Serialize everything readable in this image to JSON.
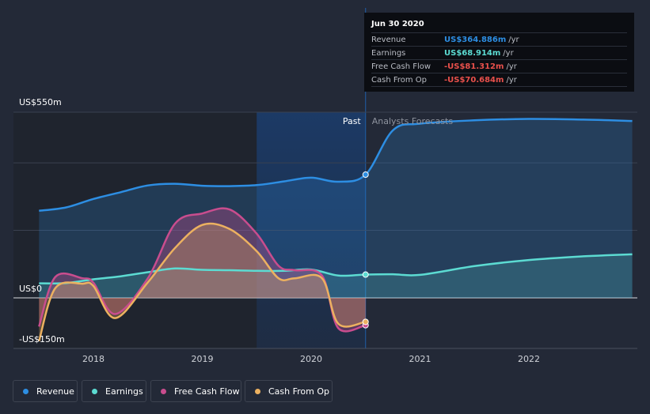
{
  "chart_data": {
    "type": "area",
    "y_axis": {
      "top_label": "US$550m",
      "zero_label": "US$0",
      "bottom_label": "-US$150m",
      "ylim": [
        -150,
        550
      ]
    },
    "x_axis": {
      "ticks": [
        "2018",
        "2019",
        "2020",
        "2021",
        "2022"
      ]
    },
    "regions": {
      "past_label": "Past",
      "forecast_label": "Analysts Forecasts"
    },
    "series": [
      {
        "name": "Revenue",
        "color": "#2d8ee3",
        "points": [
          [
            2017.5,
            258
          ],
          [
            2017.75,
            268
          ],
          [
            2018.0,
            293
          ],
          [
            2018.25,
            313
          ],
          [
            2018.5,
            333
          ],
          [
            2018.75,
            338
          ],
          [
            2019.0,
            332
          ],
          [
            2019.25,
            331
          ],
          [
            2019.5,
            334
          ],
          [
            2019.75,
            345
          ],
          [
            2020.0,
            356
          ],
          [
            2020.25,
            344
          ],
          [
            2020.5,
            365
          ],
          [
            2020.75,
            496
          ],
          [
            2021.0,
            516
          ],
          [
            2021.5,
            526
          ],
          [
            2022.0,
            530
          ],
          [
            2022.5,
            528
          ],
          [
            2022.95,
            524
          ]
        ]
      },
      {
        "name": "Earnings",
        "color": "#5cdbd2",
        "points": [
          [
            2017.5,
            43
          ],
          [
            2017.75,
            44
          ],
          [
            2018.0,
            55
          ],
          [
            2018.25,
            64
          ],
          [
            2018.5,
            76
          ],
          [
            2018.75,
            87
          ],
          [
            2019.0,
            83
          ],
          [
            2019.25,
            82
          ],
          [
            2019.5,
            80
          ],
          [
            2019.75,
            80
          ],
          [
            2020.0,
            84
          ],
          [
            2020.25,
            66
          ],
          [
            2020.5,
            69
          ],
          [
            2020.75,
            70
          ],
          [
            2021.0,
            68
          ],
          [
            2021.5,
            94
          ],
          [
            2022.0,
            112
          ],
          [
            2022.5,
            123
          ],
          [
            2022.95,
            129
          ]
        ]
      },
      {
        "name": "Free Cash Flow",
        "color": "#c94d8e",
        "points": [
          [
            2017.5,
            -85
          ],
          [
            2017.65,
            62
          ],
          [
            2017.9,
            58
          ],
          [
            2018.0,
            45
          ],
          [
            2018.2,
            -48
          ],
          [
            2018.5,
            58
          ],
          [
            2018.75,
            220
          ],
          [
            2019.0,
            250
          ],
          [
            2019.25,
            262
          ],
          [
            2019.5,
            190
          ],
          [
            2019.7,
            95
          ],
          [
            2019.85,
            82
          ],
          [
            2020.1,
            66
          ],
          [
            2020.25,
            -90
          ],
          [
            2020.5,
            -81
          ]
        ]
      },
      {
        "name": "Cash From Op",
        "color": "#ecb160",
        "points": [
          [
            2017.5,
            -128
          ],
          [
            2017.65,
            29
          ],
          [
            2017.9,
            42
          ],
          [
            2018.0,
            35
          ],
          [
            2018.2,
            -60
          ],
          [
            2018.5,
            46
          ],
          [
            2018.75,
            148
          ],
          [
            2019.0,
            216
          ],
          [
            2019.25,
            204
          ],
          [
            2019.5,
            138
          ],
          [
            2019.7,
            58
          ],
          [
            2019.85,
            58
          ],
          [
            2020.1,
            58
          ],
          [
            2020.25,
            -77
          ],
          [
            2020.5,
            -71
          ]
        ]
      }
    ]
  },
  "tooltip": {
    "date": "Jun 30 2020",
    "unit": "/yr",
    "rows": [
      {
        "label": "Revenue",
        "value": "US$364.886m",
        "color": "#2d8ee3"
      },
      {
        "label": "Earnings",
        "value": "US$68.914m",
        "color": "#5cdbd2"
      },
      {
        "label": "Free Cash Flow",
        "value": "-US$81.312m",
        "color": "#e8504b"
      },
      {
        "label": "Cash From Op",
        "value": "-US$70.684m",
        "color": "#e8504b"
      }
    ]
  },
  "legend": {
    "items": [
      {
        "label": "Revenue",
        "color": "#2d8ee3"
      },
      {
        "label": "Earnings",
        "color": "#5cdbd2"
      },
      {
        "label": "Free Cash Flow",
        "color": "#c94d8e"
      },
      {
        "label": "Cash From Op",
        "color": "#ecb160"
      }
    ]
  }
}
